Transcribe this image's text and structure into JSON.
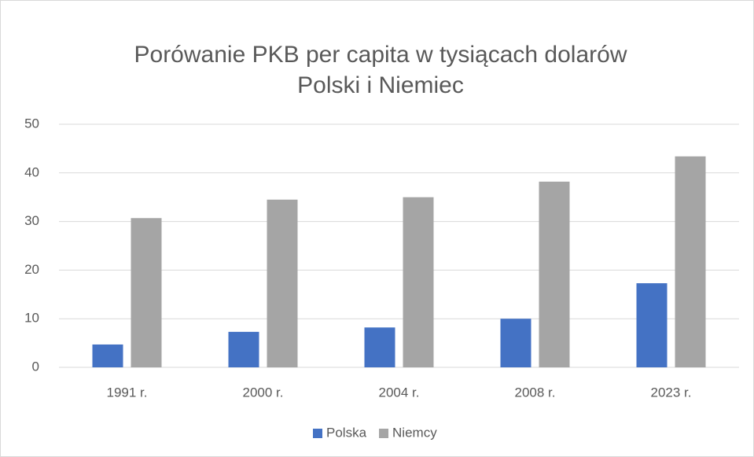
{
  "chart_data": {
    "type": "bar",
    "title": [
      "Porówanie PKB per capita w tysiącach dolarów",
      "Polski i Niemiec"
    ],
    "categories": [
      "1991 r.",
      "2000 r.",
      "2004 r.",
      "2008 r.",
      "2023 r."
    ],
    "series": [
      {
        "name": "Polska",
        "color": "#4472c4",
        "values": [
          4.7,
          7.3,
          8.2,
          10.0,
          17.3
        ]
      },
      {
        "name": "Niemcy",
        "color": "#a5a5a5",
        "values": [
          30.7,
          34.5,
          35.0,
          38.2,
          43.4
        ]
      }
    ],
    "ylim": [
      0,
      50
    ],
    "yticks": [
      0,
      10,
      20,
      30,
      40,
      50
    ],
    "grid": true,
    "legend": "bottom"
  }
}
